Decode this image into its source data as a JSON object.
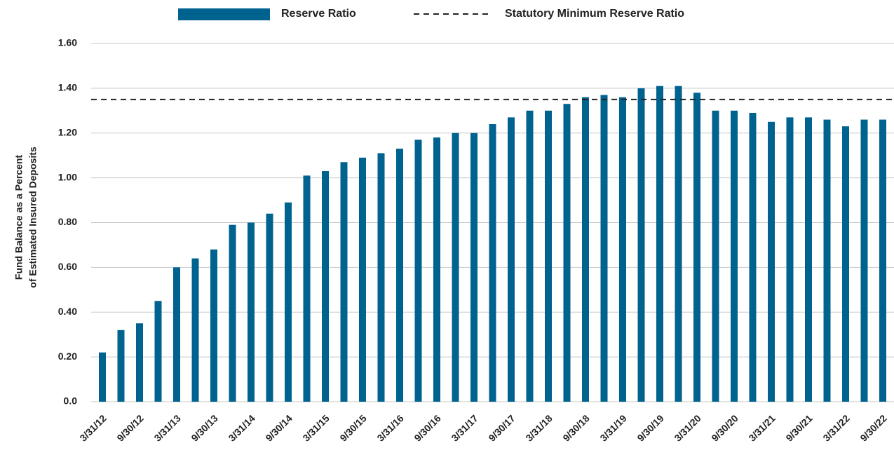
{
  "chart_data": {
    "type": "bar",
    "y_label": [
      "Fund Balance as a Percent",
      "of Estimated Insured Deposits"
    ],
    "categories": [
      "3/31/12",
      null,
      "9/30/12",
      null,
      "3/31/13",
      null,
      "9/30/13",
      null,
      "3/31/14",
      null,
      "9/30/14",
      null,
      "3/31/15",
      null,
      "9/30/15",
      null,
      "3/31/16",
      null,
      "9/30/16",
      null,
      "3/31/17",
      null,
      "9/30/17",
      null,
      "3/31/18",
      null,
      "9/30/18",
      null,
      "3/31/19",
      null,
      "9/30/19",
      null,
      "3/31/20",
      null,
      "9/30/20",
      null,
      "3/31/21",
      null,
      "9/30/21",
      null,
      "3/31/22",
      null,
      "9/30/22"
    ],
    "series": [
      {
        "name": "Reserve Ratio",
        "color": "#00628f",
        "values": [
          0.22,
          0.32,
          0.35,
          0.45,
          0.6,
          0.64,
          0.68,
          0.79,
          0.8,
          0.84,
          0.89,
          1.01,
          1.03,
          1.07,
          1.09,
          1.11,
          1.13,
          1.17,
          1.18,
          1.2,
          1.2,
          1.24,
          1.27,
          1.3,
          1.3,
          1.33,
          1.36,
          1.37,
          1.36,
          1.4,
          1.41,
          1.41,
          1.38,
          1.3,
          1.3,
          1.29,
          1.25,
          1.27,
          1.27,
          1.26,
          1.23,
          1.26,
          1.26
        ]
      }
    ],
    "reference_lines": [
      {
        "name": "Statutory Minimum Reserve Ratio",
        "value": 1.35,
        "color": "#222222",
        "style": "dashed"
      }
    ],
    "ylim": [
      0,
      1.6
    ],
    "yticks": [
      {
        "value": 0,
        "label": "0.0"
      },
      {
        "value": 0.2,
        "label": "0.20"
      },
      {
        "value": 0.4,
        "label": "0.40"
      },
      {
        "value": 0.6,
        "label": "0.60"
      },
      {
        "value": 0.8,
        "label": "0.80"
      },
      {
        "value": 1.0,
        "label": "1.00"
      },
      {
        "value": 1.2,
        "label": "1.20"
      },
      {
        "value": 1.4,
        "label": "1.40"
      },
      {
        "value": 1.6,
        "label": "1.60"
      }
    ],
    "grid": true,
    "legend": "top"
  }
}
